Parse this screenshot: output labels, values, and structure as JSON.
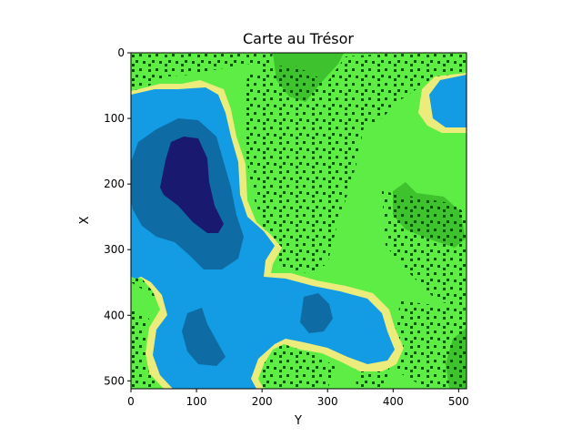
{
  "title": "Carte au Trésor",
  "xlabel": "Y",
  "ylabel": "X",
  "colors": {
    "deep_water": "#191970",
    "mid_water": "#0f6ba3",
    "water": "#139be3",
    "sand": "#ecec7c",
    "grass": "#5ded45",
    "hill": "#3ec22e",
    "forest": "#0a4a0a"
  },
  "chart_data": {
    "type": "heatmap",
    "title": "Carte au Trésor",
    "xlabel": "Y",
    "ylabel": "X",
    "xlim": [
      0,
      512
    ],
    "ylim": [
      512,
      0
    ],
    "x_ticks": [
      0,
      100,
      200,
      300,
      400,
      500
    ],
    "y_ticks": [
      0,
      100,
      200,
      300,
      400,
      500
    ],
    "x_tick_labels": [
      "0",
      "100",
      "200",
      "300",
      "400",
      "500"
    ],
    "y_tick_labels": [
      "0",
      "100",
      "200",
      "300",
      "400",
      "500"
    ],
    "grid": false,
    "legend": "none"
  }
}
